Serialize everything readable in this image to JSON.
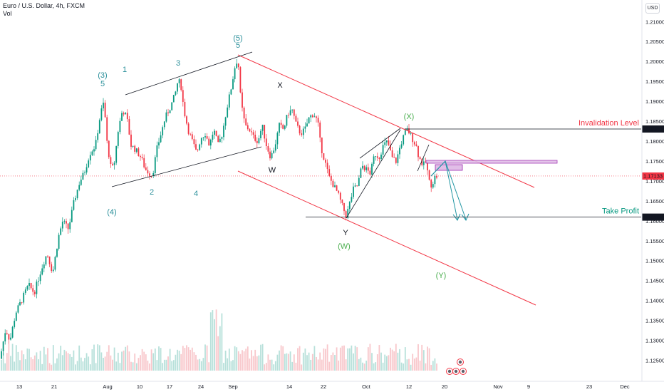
{
  "header": {
    "symbol_line": "Euro / U.S. Dollar, 4h, FXCM",
    "indicator": "Vol"
  },
  "price_axis": {
    "currency": "USD"
  },
  "chart_data": {
    "type": "candlestick",
    "title": "Euro / U.S. Dollar, 4h, FXCM",
    "ylim": [
      1.1225,
      1.213
    ],
    "y_ticks": [
      1.125,
      1.13,
      1.135,
      1.14,
      1.145,
      1.15,
      1.155,
      1.16,
      1.165,
      1.17,
      1.175,
      1.18,
      1.185,
      1.19,
      1.195,
      1.2,
      1.205,
      1.21
    ],
    "x_ticks": [
      "13",
      "21",
      "Aug",
      "10",
      "17",
      "24",
      "Sep",
      "14",
      "22",
      "Oct",
      "12",
      "20",
      "Nov",
      "9",
      "23",
      "Dec"
    ],
    "price_path": [
      [
        0,
        1.1255
      ],
      [
        8,
        1.133
      ],
      [
        14,
        1.13
      ],
      [
        22,
        1.137
      ],
      [
        30,
        1.14
      ],
      [
        40,
        1.144
      ],
      [
        48,
        1.142
      ],
      [
        58,
        1.148
      ],
      [
        66,
        1.152
      ],
      [
        74,
        1.147
      ],
      [
        82,
        1.156
      ],
      [
        88,
        1.16
      ],
      [
        96,
        1.158
      ],
      [
        104,
        1.165
      ],
      [
        112,
        1.17
      ],
      [
        118,
        1.172
      ],
      [
        126,
        1.177
      ],
      [
        134,
        1.179
      ],
      [
        141,
        1.187
      ],
      [
        146,
        1.19
      ],
      [
        150,
        1.18
      ],
      [
        156,
        1.173
      ],
      [
        160,
        1.174
      ],
      [
        166,
        1.183
      ],
      [
        172,
        1.188
      ],
      [
        178,
        1.186
      ],
      [
        184,
        1.179
      ],
      [
        190,
        1.178
      ],
      [
        198,
        1.176
      ],
      [
        204,
        1.173
      ],
      [
        210,
        1.172
      ],
      [
        214,
        1.1715
      ],
      [
        220,
        1.178
      ],
      [
        226,
        1.182
      ],
      [
        232,
        1.186
      ],
      [
        240,
        1.189
      ],
      [
        246,
        1.192
      ],
      [
        250,
        1.1955
      ],
      [
        254,
        1.194
      ],
      [
        258,
        1.188
      ],
      [
        264,
        1.183
      ],
      [
        270,
        1.18
      ],
      [
        276,
        1.177
      ],
      [
        282,
        1.181
      ],
      [
        288,
        1.182
      ],
      [
        294,
        1.179
      ],
      [
        300,
        1.183
      ],
      [
        306,
        1.179
      ],
      [
        312,
        1.182
      ],
      [
        318,
        1.188
      ],
      [
        324,
        1.193
      ],
      [
        330,
        1.199
      ],
      [
        334,
        1.201
      ],
      [
        338,
        1.19
      ],
      [
        344,
        1.184
      ],
      [
        350,
        1.183
      ],
      [
        356,
        1.181
      ],
      [
        362,
        1.18
      ],
      [
        368,
        1.184
      ],
      [
        374,
        1.179
      ],
      [
        380,
        1.176
      ],
      [
        386,
        1.179
      ],
      [
        392,
        1.184
      ],
      [
        398,
        1.183
      ],
      [
        404,
        1.187
      ],
      [
        410,
        1.188
      ],
      [
        416,
        1.184
      ],
      [
        422,
        1.182
      ],
      [
        428,
        1.183
      ],
      [
        434,
        1.186
      ],
      [
        440,
        1.187
      ],
      [
        446,
        1.185
      ],
      [
        450,
        1.179
      ],
      [
        456,
        1.175
      ],
      [
        462,
        1.171
      ],
      [
        468,
        1.169
      ],
      [
        474,
        1.167
      ],
      [
        480,
        1.164
      ],
      [
        486,
        1.1612
      ],
      [
        490,
        1.164
      ],
      [
        496,
        1.168
      ],
      [
        502,
        1.169
      ],
      [
        508,
        1.174
      ],
      [
        514,
        1.173
      ],
      [
        520,
        1.172
      ],
      [
        526,
        1.177
      ],
      [
        532,
        1.176
      ],
      [
        538,
        1.179
      ],
      [
        544,
        1.18
      ],
      [
        550,
        1.176
      ],
      [
        556,
        1.175
      ],
      [
        562,
        1.179
      ],
      [
        568,
        1.182
      ],
      [
        572,
        1.183
      ],
      [
        578,
        1.181
      ],
      [
        584,
        1.179
      ],
      [
        588,
        1.176
      ],
      [
        594,
        1.174
      ],
      [
        598,
        1.175
      ],
      [
        602,
        1.17
      ],
      [
        606,
        1.169
      ],
      [
        610,
        1.171
      ],
      [
        614,
        1.1713
      ]
    ],
    "levels": [
      {
        "label": "Invalidation Level",
        "value": 1.18313,
        "color": "#f23645"
      },
      {
        "label": "Take Profit",
        "value": 1.16102,
        "color": "#089981"
      },
      {
        "label": "",
        "value": 1.17133,
        "color": "#f23645"
      }
    ],
    "wave_labels": [
      {
        "text": "(5)",
        "color": "#2a8f9a"
      },
      {
        "text": "5",
        "color": "#2a8f9a"
      },
      {
        "text": "(3)",
        "color": "#2a8f9a"
      },
      {
        "text": "5",
        "color": "#2a8f9a"
      },
      {
        "text": "1",
        "color": "#2a8f9a"
      },
      {
        "text": "3",
        "color": "#2a8f9a"
      },
      {
        "text": "2",
        "color": "#2a8f9a"
      },
      {
        "text": "4",
        "color": "#2a8f9a"
      },
      {
        "text": "(4)",
        "color": "#2a8f9a"
      },
      {
        "text": "X",
        "color": "#131722"
      },
      {
        "text": "W",
        "color": "#131722"
      },
      {
        "text": "Y",
        "color": "#131722"
      },
      {
        "text": "(W)",
        "color": "#4caf50"
      },
      {
        "text": "(X)",
        "color": "#4caf50"
      },
      {
        "text": "(Y)",
        "color": "#4caf50"
      }
    ],
    "colors": {
      "up": "#089981",
      "down": "#f23645",
      "channel": "#f23645",
      "trendline": "#131722",
      "target_arrow": "#2196a3",
      "zone": "#9c27b0"
    }
  }
}
